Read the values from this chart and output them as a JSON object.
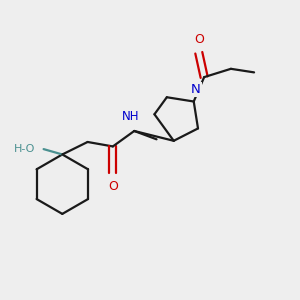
{
  "bg_color": "#eeeeee",
  "bond_color": "#1a1a1a",
  "N_color": "#0000cc",
  "O_color": "#cc0000",
  "HO_color": "#4a9090",
  "lw": 1.6,
  "figsize": [
    3.0,
    3.0
  ],
  "dpi": 100,
  "xlim": [
    0,
    10
  ],
  "ylim": [
    0,
    10
  ]
}
